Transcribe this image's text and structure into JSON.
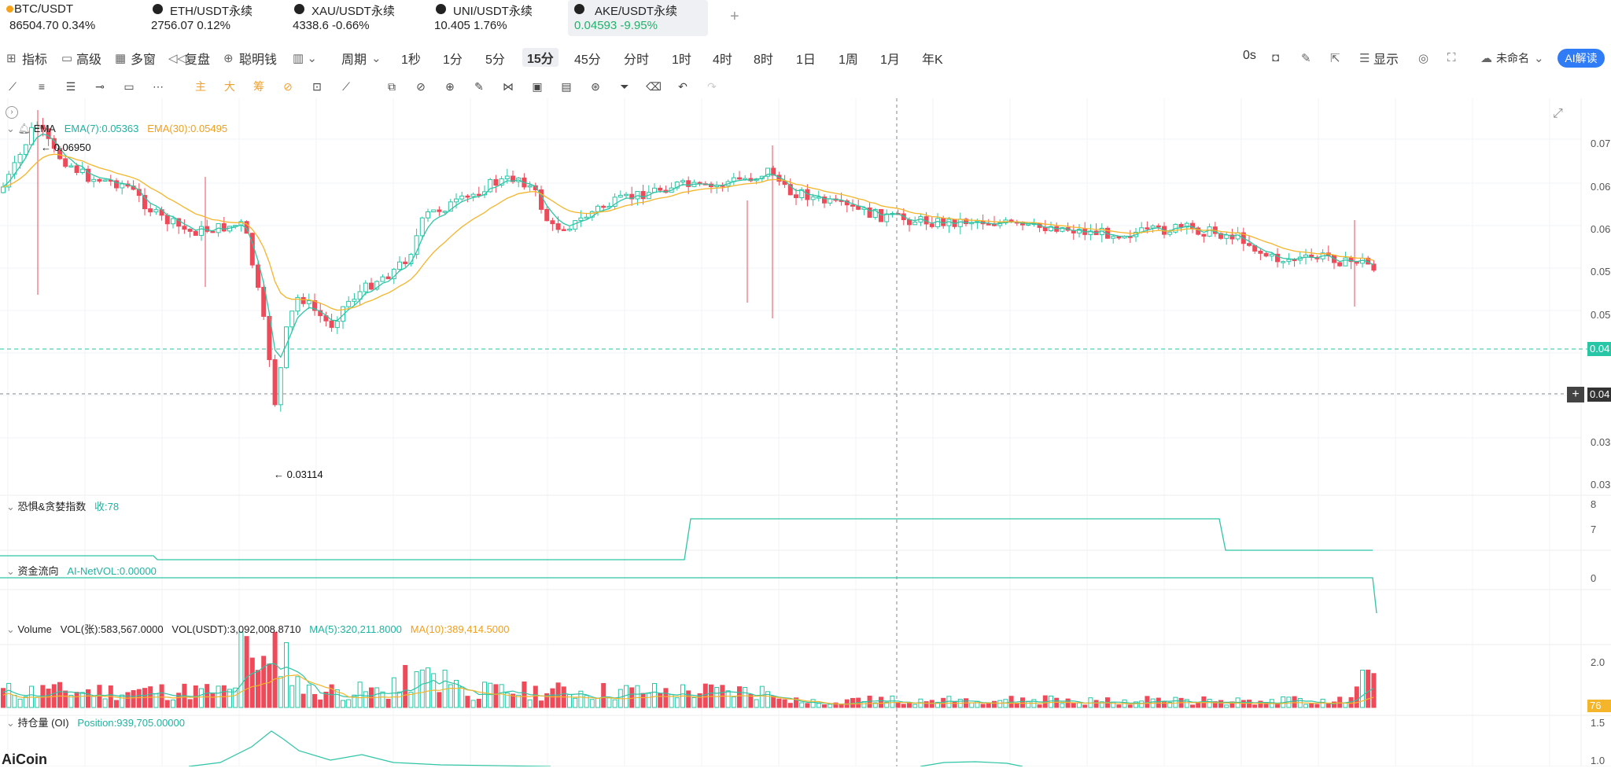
{
  "tickers": [
    {
      "symbol": "BTC/USDT",
      "value": "86504.70  0.34%",
      "active": false
    },
    {
      "symbol": "ETH/USDT永续",
      "value": "2756.07  0.12%",
      "active": false
    },
    {
      "symbol": "XAU/USDT永续",
      "value": "4338.6  -0.66%",
      "active": false
    },
    {
      "symbol": "UNI/USDT永续",
      "value": "10.405  1.76%",
      "active": false
    },
    {
      "symbol": "AKE/USDT永续",
      "value": "0.04593  -9.95%",
      "active": true
    }
  ],
  "add_tab": "+",
  "toolbar": {
    "indicators": "指标",
    "advanced": "高级",
    "multi_window": "多窗",
    "replay": "复盘",
    "smart_money": "聪明钱",
    "period": "周期",
    "intervals": [
      "1秒",
      "1分",
      "5分",
      "15分",
      "45分",
      "分时",
      "1时",
      "4时",
      "8时",
      "1日",
      "1周",
      "1月",
      "年K"
    ],
    "selected_interval": "15分",
    "countdown": "0s",
    "display": "显示",
    "layout_name": "未命名",
    "ai_button": "AI解读"
  },
  "indicators": {
    "ema": {
      "name": "EMA",
      "ema7": "EMA(7):0.05363",
      "ema30": "EMA(30):0.05495"
    },
    "fear_greed": {
      "name": "恐惧&贪婪指数",
      "value": "收:78"
    },
    "fund_flow": {
      "name": "资金流向",
      "value": "AI-NetVOL:0.00000"
    },
    "volume": {
      "name": "Volume",
      "vol_contracts": "VOL(张):583,567.0000",
      "vol_usdt": "VOL(USDT):3,092,008.8710",
      "ma5": "MA(5):320,211.8000",
      "ma10": "MA(10):389,414.5000"
    },
    "open_interest": {
      "name": "持仓量 (OI)",
      "value": "Position:939,705.00000"
    }
  },
  "annotations": {
    "high": "← 0.06950",
    "low": "← 0.03114"
  },
  "axis_labels": {
    "p1": "0.07",
    "p2": "0.06",
    "p3": "0.06",
    "p4": "0.05",
    "p5": "0.05",
    "p6": "0.04",
    "p7": "0.04",
    "p8": "0.03",
    "p9": "0.03",
    "fg1": "8",
    "fg2": "7",
    "ff1": "0",
    "v1": "2.0",
    "v2": "76",
    "oi1": "1.5",
    "oi2": "1.0"
  },
  "current_price_tag": "0.04",
  "crosshair_price_tag": "0.04",
  "logo": "AiCoin",
  "colors": {
    "up": "#26c6a6",
    "down": "#ef4a5a",
    "ema7": "#2ec5a5",
    "ema30": "#f5b52a",
    "accent": "#2f7cf6"
  },
  "chart_data": {
    "type": "candlestick",
    "title": "",
    "y_high": 0.0695,
    "y_low": 0.03114,
    "ema7_last": 0.05363,
    "ema30_last": 0.05495,
    "last_price": 0.04593,
    "fear_greed_last": 78
  }
}
